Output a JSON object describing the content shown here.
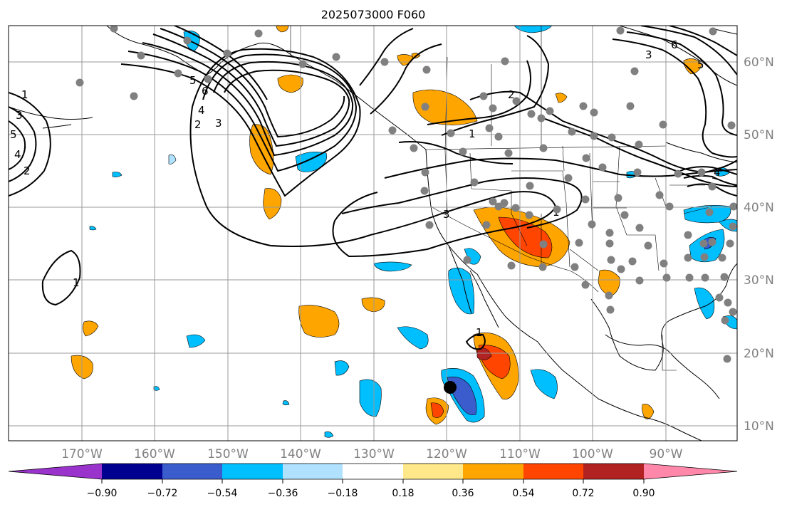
{
  "title": "2025073000 F060",
  "lat_labels": [
    "60°N",
    "50°N",
    "40°N",
    "30°N",
    "20°N",
    "10°N"
  ],
  "lon_labels": [
    "170°W",
    "160°W",
    "150°W",
    "140°W",
    "130°W",
    "120°W",
    "110°W",
    "100°W",
    "90°W"
  ],
  "colorbar": {
    "colors": [
      "#9933cc",
      "#000090",
      "#3a5ccc",
      "#00bfff",
      "#b0e2ff",
      "#ffffff",
      "#ffe88a",
      "#ffa500",
      "#ff4500",
      "#b22222",
      "#ff88aa"
    ],
    "tick_labels": [
      "−0.90",
      "−0.72",
      "−0.54",
      "−0.36",
      "−0.18",
      "0.18",
      "0.36",
      "0.54",
      "0.72",
      "0.90"
    ]
  },
  "contour_labels": [
    "1",
    "2",
    "3",
    "4",
    "5",
    "6",
    "2",
    "3",
    "4",
    "5",
    "1",
    "2",
    "1",
    "3",
    "1",
    "3",
    "6",
    "5",
    "4",
    "1"
  ]
}
